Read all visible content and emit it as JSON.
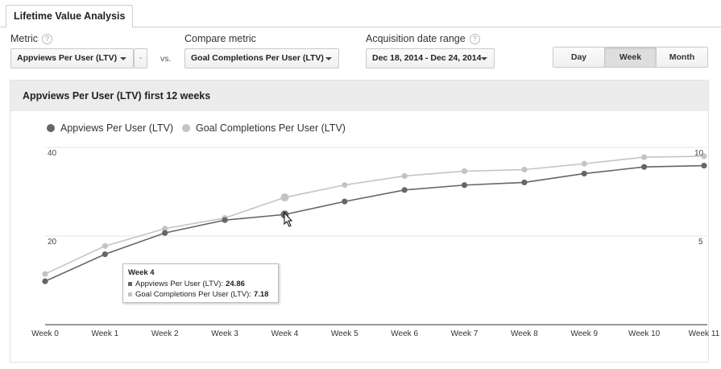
{
  "tab": {
    "label": "Lifetime Value Analysis"
  },
  "metric": {
    "label": "Metric",
    "help": "?",
    "value": "Appviews Per User (LTV)",
    "remove": "-"
  },
  "vs": "vs.",
  "compare": {
    "label": "Compare metric",
    "value": "Goal Completions Per User (LTV)"
  },
  "daterange": {
    "label": "Acquisition date range",
    "help": "?",
    "value": "Dec 18, 2014 - Dec 24, 2014"
  },
  "granularity": {
    "options": [
      "Day",
      "Week",
      "Month"
    ],
    "selected": "Week"
  },
  "panel": {
    "title": "Appviews Per User (LTV) first 12 weeks"
  },
  "colors": {
    "primary": "#666666",
    "secondary": "#c4c4c4"
  },
  "chart_data": {
    "type": "line",
    "legend_position": "top-left",
    "grid": true,
    "x": [
      "Week 0",
      "Week 1",
      "Week 2",
      "Week 3",
      "Week 4",
      "Week 5",
      "Week 6",
      "Week 7",
      "Week 8",
      "Week 9",
      "Week 10",
      "Week 11"
    ],
    "left_axis": {
      "ticks": [
        "40",
        "20"
      ],
      "ylim": [
        0,
        40
      ]
    },
    "right_axis": {
      "ticks": [
        "10",
        "5"
      ],
      "ylim": [
        0,
        10
      ]
    },
    "series": [
      {
        "name": "Appviews Per User (LTV)",
        "axis": "left",
        "color": "#666666",
        "values": [
          9.8,
          15.9,
          20.7,
          23.6,
          24.86,
          27.8,
          30.4,
          31.5,
          32.1,
          34.1,
          35.6,
          35.9
        ]
      },
      {
        "name": "Goal Completions Per User (LTV)",
        "axis": "right",
        "color": "#c4c4c4",
        "values": [
          2.86,
          4.44,
          5.42,
          6.02,
          7.18,
          7.88,
          8.39,
          8.66,
          8.75,
          9.08,
          9.45,
          9.5
        ]
      }
    ],
    "tooltip": {
      "title": "Week 4",
      "rows": [
        {
          "label": "Appviews Per User (LTV):",
          "value": "24.86"
        },
        {
          "label": "Goal Completions Per User (LTV):",
          "value": "7.18"
        }
      ]
    }
  }
}
